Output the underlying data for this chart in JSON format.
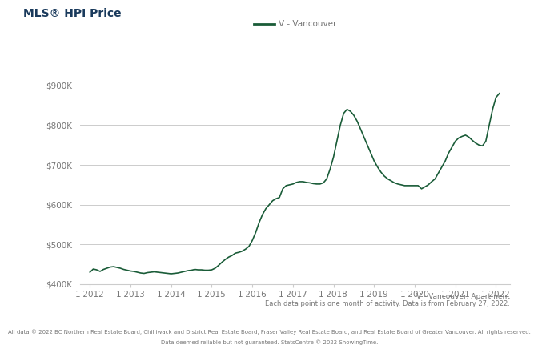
{
  "title": "MLS® HPI Price",
  "legend_label": "V - Vancouver",
  "subtitle_right": "V - Vancouver: Apartment",
  "caption1": "Each data point is one month of activity. Data is from February 27, 2022.",
  "caption2": "All data © 2022 BC Northern Real Estate Board, Chilliwack and District Real Estate Board, Fraser Valley Real Estate Board, and Real Estate Board of Greater Vancouver. All rights reserved.",
  "caption3": "Data deemed reliable but not guaranteed. StatsCentre © 2022 ShowingTime.",
  "line_color": "#1a5c38",
  "background_color": "#ffffff",
  "ylim": [
    400000,
    960000
  ],
  "yticks": [
    400000,
    500000,
    600000,
    700000,
    800000,
    900000
  ],
  "ytick_labels": [
    "$400K",
    "$500K",
    "$600K",
    "$700K",
    "$800K",
    "$900K"
  ],
  "xlim_start": 2011.75,
  "xlim_end": 2022.35,
  "title_color": "#1a3a5c",
  "axis_label_color": "#777777",
  "grid_color": "#cccccc",
  "data": [
    [
      2012.0,
      430000
    ],
    [
      2012.083,
      438000
    ],
    [
      2012.167,
      436000
    ],
    [
      2012.25,
      432000
    ],
    [
      2012.333,
      437000
    ],
    [
      2012.417,
      440000
    ],
    [
      2012.5,
      443000
    ],
    [
      2012.583,
      444000
    ],
    [
      2012.667,
      442000
    ],
    [
      2012.75,
      440000
    ],
    [
      2012.833,
      437000
    ],
    [
      2012.917,
      435000
    ],
    [
      2013.0,
      433000
    ],
    [
      2013.083,
      432000
    ],
    [
      2013.167,
      430000
    ],
    [
      2013.25,
      428000
    ],
    [
      2013.333,
      427000
    ],
    [
      2013.417,
      429000
    ],
    [
      2013.5,
      430000
    ],
    [
      2013.583,
      431000
    ],
    [
      2013.667,
      430000
    ],
    [
      2013.75,
      429000
    ],
    [
      2013.833,
      428000
    ],
    [
      2013.917,
      427000
    ],
    [
      2014.0,
      426000
    ],
    [
      2014.083,
      427000
    ],
    [
      2014.167,
      428000
    ],
    [
      2014.25,
      430000
    ],
    [
      2014.333,
      432000
    ],
    [
      2014.417,
      434000
    ],
    [
      2014.5,
      435000
    ],
    [
      2014.583,
      437000
    ],
    [
      2014.667,
      436000
    ],
    [
      2014.75,
      436000
    ],
    [
      2014.833,
      435000
    ],
    [
      2014.917,
      435000
    ],
    [
      2015.0,
      436000
    ],
    [
      2015.083,
      440000
    ],
    [
      2015.167,
      447000
    ],
    [
      2015.25,
      455000
    ],
    [
      2015.333,
      462000
    ],
    [
      2015.417,
      468000
    ],
    [
      2015.5,
      472000
    ],
    [
      2015.583,
      478000
    ],
    [
      2015.667,
      480000
    ],
    [
      2015.75,
      483000
    ],
    [
      2015.833,
      488000
    ],
    [
      2015.917,
      495000
    ],
    [
      2016.0,
      510000
    ],
    [
      2016.083,
      530000
    ],
    [
      2016.167,
      555000
    ],
    [
      2016.25,
      575000
    ],
    [
      2016.333,
      590000
    ],
    [
      2016.417,
      600000
    ],
    [
      2016.5,
      610000
    ],
    [
      2016.583,
      615000
    ],
    [
      2016.667,
      618000
    ],
    [
      2016.75,
      640000
    ],
    [
      2016.833,
      648000
    ],
    [
      2016.917,
      650000
    ],
    [
      2017.0,
      652000
    ],
    [
      2017.083,
      656000
    ],
    [
      2017.167,
      658000
    ],
    [
      2017.25,
      658000
    ],
    [
      2017.333,
      656000
    ],
    [
      2017.417,
      655000
    ],
    [
      2017.5,
      653000
    ],
    [
      2017.583,
      652000
    ],
    [
      2017.667,
      652000
    ],
    [
      2017.75,
      655000
    ],
    [
      2017.833,
      665000
    ],
    [
      2017.917,
      690000
    ],
    [
      2018.0,
      720000
    ],
    [
      2018.083,
      760000
    ],
    [
      2018.167,
      800000
    ],
    [
      2018.25,
      830000
    ],
    [
      2018.333,
      840000
    ],
    [
      2018.417,
      835000
    ],
    [
      2018.5,
      825000
    ],
    [
      2018.583,
      810000
    ],
    [
      2018.667,
      790000
    ],
    [
      2018.75,
      770000
    ],
    [
      2018.833,
      750000
    ],
    [
      2018.917,
      730000
    ],
    [
      2019.0,
      710000
    ],
    [
      2019.083,
      695000
    ],
    [
      2019.167,
      682000
    ],
    [
      2019.25,
      672000
    ],
    [
      2019.333,
      665000
    ],
    [
      2019.417,
      660000
    ],
    [
      2019.5,
      655000
    ],
    [
      2019.583,
      652000
    ],
    [
      2019.667,
      650000
    ],
    [
      2019.75,
      648000
    ],
    [
      2019.833,
      648000
    ],
    [
      2019.917,
      648000
    ],
    [
      2020.0,
      648000
    ],
    [
      2020.083,
      648000
    ],
    [
      2020.167,
      640000
    ],
    [
      2020.25,
      645000
    ],
    [
      2020.333,
      650000
    ],
    [
      2020.417,
      658000
    ],
    [
      2020.5,
      665000
    ],
    [
      2020.583,
      680000
    ],
    [
      2020.667,
      695000
    ],
    [
      2020.75,
      710000
    ],
    [
      2020.833,
      730000
    ],
    [
      2020.917,
      745000
    ],
    [
      2021.0,
      760000
    ],
    [
      2021.083,
      768000
    ],
    [
      2021.167,
      772000
    ],
    [
      2021.25,
      775000
    ],
    [
      2021.333,
      770000
    ],
    [
      2021.417,
      762000
    ],
    [
      2021.5,
      755000
    ],
    [
      2021.583,
      750000
    ],
    [
      2021.667,
      748000
    ],
    [
      2021.75,
      760000
    ],
    [
      2021.833,
      800000
    ],
    [
      2021.917,
      840000
    ],
    [
      2022.0,
      870000
    ],
    [
      2022.083,
      880000
    ]
  ]
}
